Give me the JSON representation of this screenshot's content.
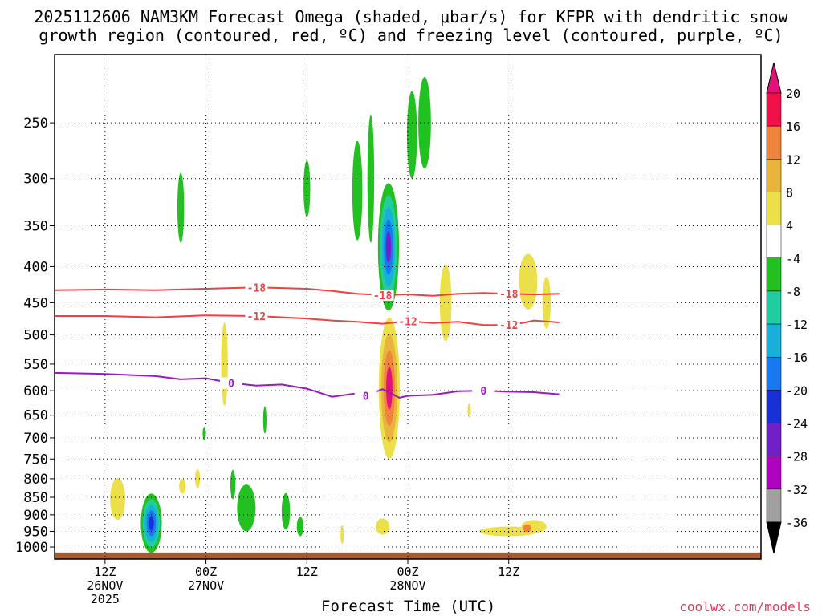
{
  "title": {
    "line1": "2025112606 NAM3KM Forecast Omega (shaded, μbar/s) for KFPR with dendritic snow",
    "line2": "growth region (contoured, red, ºC) and freezing level (contoured, purple, ºC)"
  },
  "watermark": "coolwx.com/models",
  "chart_data": {
    "type": "time-height cross section",
    "title": "2025112606 NAM3KM Forecast Omega (shaded, μbar/s) for KFPR with dendritic snow growth region (contoured, red, ºC) and freezing level (contoured, purple, ºC)",
    "xlabel": "Forecast Time (UTC)",
    "ylabel": "",
    "x_range_hours": [
      6,
      90
    ],
    "y_range_hpa": [
      1040,
      200
    ],
    "y_scale": "log",
    "grid": true,
    "y_ticks": [
      250,
      300,
      350,
      400,
      450,
      500,
      550,
      600,
      650,
      700,
      750,
      800,
      850,
      900,
      950,
      1000
    ],
    "x_ticks": [
      {
        "hour": 12,
        "label": "12Z",
        "sublabel": "26NOV",
        "sublabel2": "2025"
      },
      {
        "hour": 24,
        "label": "00Z",
        "sublabel": "27NOV",
        "sublabel2": ""
      },
      {
        "hour": 36,
        "label": "12Z",
        "sublabel": "",
        "sublabel2": ""
      },
      {
        "hour": 48,
        "label": "00Z",
        "sublabel": "28NOV",
        "sublabel2": ""
      },
      {
        "hour": 60,
        "label": "12Z",
        "sublabel": "",
        "sublabel2": ""
      }
    ],
    "colorbar": {
      "levels": [
        20,
        16,
        12,
        8,
        4,
        -4,
        -8,
        -12,
        -16,
        -20,
        -24,
        -28,
        -32,
        -36
      ],
      "colors": [
        "#f0104a",
        "#f0843c",
        "#e8b43c",
        "#ece04a",
        "#ffffff",
        "#22c020",
        "#20cca0",
        "#18b0d8",
        "#1878f0",
        "#1830d8",
        "#7020c8",
        "#b000c0",
        "#a0a0a0"
      ],
      "top_color": "#e4107c",
      "bottom_color": "#000000"
    },
    "contours": [
      {
        "name": "-18",
        "color": "#f04040",
        "label": "-18",
        "points": [
          [
            6,
            432
          ],
          [
            12,
            431
          ],
          [
            18,
            432
          ],
          [
            24,
            430
          ],
          [
            30,
            428
          ],
          [
            36,
            430
          ],
          [
            39,
            433
          ],
          [
            42,
            437
          ],
          [
            45,
            439
          ],
          [
            48,
            438
          ],
          [
            51,
            440
          ],
          [
            54,
            437
          ],
          [
            57,
            436
          ],
          [
            60,
            437
          ],
          [
            63,
            438
          ],
          [
            66,
            437
          ]
        ]
      },
      {
        "name": "-12",
        "color": "#f04040",
        "label": "-12",
        "points": [
          [
            6,
            470
          ],
          [
            12,
            470
          ],
          [
            18,
            472
          ],
          [
            24,
            469
          ],
          [
            30,
            470
          ],
          [
            36,
            474
          ],
          [
            39,
            477
          ],
          [
            42,
            479
          ],
          [
            45,
            482
          ],
          [
            48,
            478
          ],
          [
            51,
            481
          ],
          [
            54,
            479
          ],
          [
            57,
            484
          ],
          [
            60,
            484
          ],
          [
            62,
            480
          ],
          [
            63,
            477
          ],
          [
            66,
            480
          ]
        ]
      },
      {
        "name": "0",
        "color": "#9a18c8",
        "label": "0",
        "points": [
          [
            6,
            566
          ],
          [
            12,
            568
          ],
          [
            18,
            572
          ],
          [
            21,
            578
          ],
          [
            24,
            576
          ],
          [
            27,
            585
          ],
          [
            30,
            590
          ],
          [
            33,
            588
          ],
          [
            36,
            596
          ],
          [
            39,
            612
          ],
          [
            42,
            605
          ],
          [
            43,
            610
          ],
          [
            45,
            597
          ],
          [
            47,
            614
          ],
          [
            48,
            610
          ],
          [
            51,
            608
          ],
          [
            54,
            601
          ],
          [
            57,
            600
          ],
          [
            60,
            602
          ],
          [
            63,
            603
          ],
          [
            66,
            607
          ]
        ]
      }
    ],
    "omega_features": [
      {
        "name": "sfc-upward-core",
        "kind": "updraft",
        "min_value": -20,
        "center": [
          17.5,
          925
        ],
        "extent_hours": [
          16.5,
          19.0
        ],
        "extent_hpa": [
          820,
          995
        ]
      },
      {
        "name": "mid-rising-column",
        "kind": "updraft",
        "min_value": -24,
        "center": [
          45.7,
          375
        ],
        "extent_hours": [
          44.3,
          46.8
        ],
        "extent_hpa": [
          300,
          455
        ]
      },
      {
        "name": "downdraft-core",
        "kind": "downdraft",
        "max_value": 20,
        "center": [
          45.8,
          595
        ],
        "extent_hours": [
          44.5,
          47.0
        ],
        "extent_hpa": [
          485,
          770
        ]
      },
      {
        "name": "upper-green-plumes",
        "kind": "updraft",
        "min_value": -4,
        "center": [
          50,
          250
        ],
        "extent_hours": [
          49.5,
          51.0
        ],
        "extent_hpa": [
          215,
          290
        ]
      }
    ],
    "terrain": {
      "color": "#a85a30",
      "top_hpa": 1018
    }
  }
}
